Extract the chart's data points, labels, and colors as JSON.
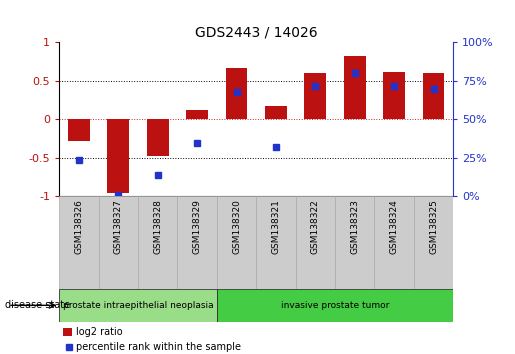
{
  "title": "GDS2443 / 14026",
  "samples": [
    "GSM138326",
    "GSM138327",
    "GSM138328",
    "GSM138329",
    "GSM138320",
    "GSM138321",
    "GSM138322",
    "GSM138323",
    "GSM138324",
    "GSM138325"
  ],
  "log2_ratio": [
    -0.28,
    -0.95,
    -0.47,
    0.12,
    0.67,
    0.18,
    0.6,
    0.82,
    0.62,
    0.6
  ],
  "percentile_rank": [
    24,
    1,
    14,
    35,
    68,
    32,
    72,
    80,
    72,
    70
  ],
  "bar_color": "#bb1111",
  "dot_color": "#2233cc",
  "ylim": [
    -1.0,
    1.0
  ],
  "y_left_ticks": [
    -1,
    -0.5,
    0,
    0.5,
    1
  ],
  "y_right_ticks": [
    0,
    25,
    50,
    75,
    100
  ],
  "hlines": [
    -0.5,
    0.0,
    0.5
  ],
  "hline_colors": [
    "black",
    "#cc2222",
    "black"
  ],
  "hline_styles": [
    "dotted",
    "dotted",
    "dotted"
  ],
  "groups": [
    {
      "label": "prostate intraepithelial neoplasia",
      "color": "#99dd88",
      "start": 0,
      "end": 4
    },
    {
      "label": "invasive prostate tumor",
      "color": "#44cc44",
      "start": 4,
      "end": 10
    }
  ],
  "disease_state_label": "disease state",
  "legend_items": [
    {
      "color": "#bb1111",
      "label": "log2 ratio"
    },
    {
      "color": "#2233cc",
      "label": "percentile rank within the sample"
    }
  ],
  "bar_width": 0.55,
  "background_color": "#ffffff",
  "plot_bg_color": "#ffffff",
  "sample_box_color": "#cccccc",
  "sample_box_edge": "#aaaaaa"
}
